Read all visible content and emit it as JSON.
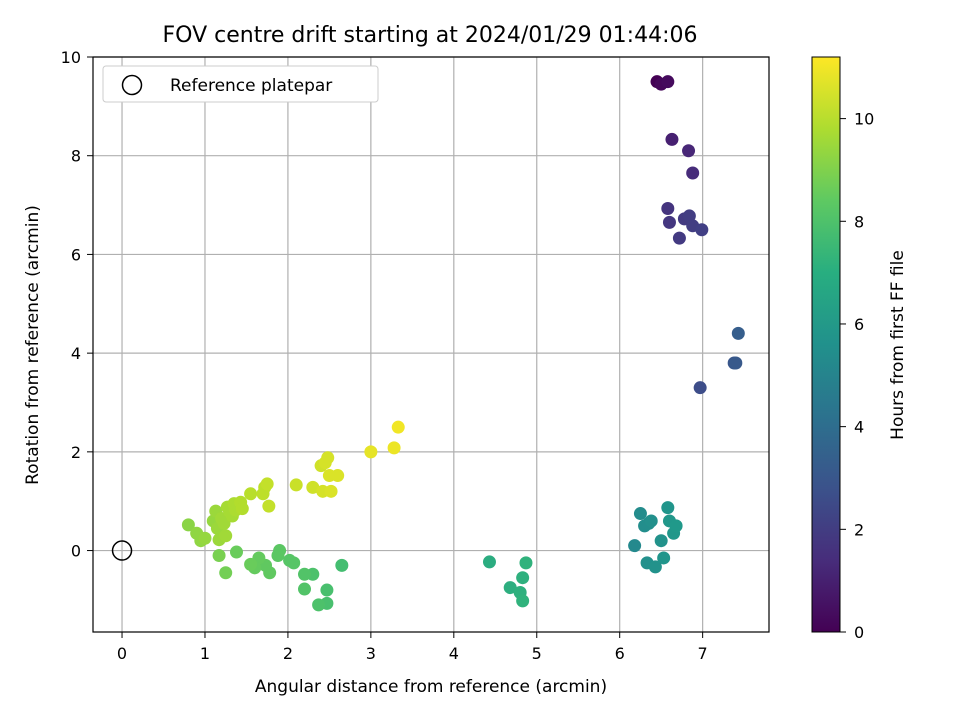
{
  "chart_data": {
    "type": "scatter",
    "title": "FOV centre drift starting at 2024/01/29 01:44:06",
    "xlabel": "Angular distance from reference (arcmin)",
    "ylabel": "Rotation from reference (arcmin)",
    "xlim": [
      -0.35,
      7.8
    ],
    "ylim": [
      -1.65,
      10.0
    ],
    "xticks": [
      0,
      1,
      2,
      3,
      4,
      5,
      6,
      7
    ],
    "yticks": [
      0,
      2,
      4,
      6,
      8,
      10
    ],
    "grid": true,
    "legend": {
      "position": "top-left",
      "entries": [
        "Reference platepar"
      ]
    },
    "reference_point": {
      "label": "Reference platepar",
      "x": 0.0,
      "y": 0.0
    },
    "colorbar": {
      "label": "Hours from first FF file",
      "colormap": "viridis",
      "range": [
        0,
        11.2
      ],
      "ticks": [
        0,
        2,
        4,
        6,
        8,
        10
      ]
    },
    "series": [
      {
        "points": [
          {
            "x": 6.45,
            "y": 9.5,
            "c": 0.0
          },
          {
            "x": 6.5,
            "y": 9.45,
            "c": 0.2
          },
          {
            "x": 6.58,
            "y": 9.5,
            "c": 0.3
          },
          {
            "x": 6.63,
            "y": 8.33,
            "c": 1.0
          },
          {
            "x": 6.83,
            "y": 8.1,
            "c": 1.2
          },
          {
            "x": 6.88,
            "y": 7.65,
            "c": 1.4
          },
          {
            "x": 6.58,
            "y": 6.93,
            "c": 1.7
          },
          {
            "x": 6.6,
            "y": 6.65,
            "c": 1.8
          },
          {
            "x": 6.72,
            "y": 6.33,
            "c": 1.9
          },
          {
            "x": 6.78,
            "y": 6.72,
            "c": 1.9
          },
          {
            "x": 6.84,
            "y": 6.78,
            "c": 2.0
          },
          {
            "x": 6.88,
            "y": 6.58,
            "c": 2.0
          },
          {
            "x": 6.99,
            "y": 6.5,
            "c": 2.1
          },
          {
            "x": 6.97,
            "y": 3.3,
            "c": 2.6
          },
          {
            "x": 7.38,
            "y": 3.8,
            "c": 3.0
          },
          {
            "x": 7.4,
            "y": 3.8,
            "c": 3.1
          },
          {
            "x": 7.43,
            "y": 4.4,
            "c": 3.3
          },
          {
            "x": 6.18,
            "y": 0.1,
            "c": 5.3
          },
          {
            "x": 6.25,
            "y": 0.75,
            "c": 5.4
          },
          {
            "x": 6.3,
            "y": 0.5,
            "c": 5.5
          },
          {
            "x": 6.35,
            "y": 0.55,
            "c": 5.5
          },
          {
            "x": 6.38,
            "y": 0.6,
            "c": 5.6
          },
          {
            "x": 6.33,
            "y": -0.25,
            "c": 5.6
          },
          {
            "x": 6.43,
            "y": -0.33,
            "c": 5.7
          },
          {
            "x": 6.5,
            "y": 0.2,
            "c": 5.7
          },
          {
            "x": 6.53,
            "y": -0.15,
            "c": 5.8
          },
          {
            "x": 6.58,
            "y": 0.87,
            "c": 5.8
          },
          {
            "x": 6.6,
            "y": 0.6,
            "c": 5.9
          },
          {
            "x": 6.65,
            "y": 0.35,
            "c": 5.9
          },
          {
            "x": 6.68,
            "y": 0.5,
            "c": 6.0
          },
          {
            "x": 4.43,
            "y": -0.23,
            "c": 6.9
          },
          {
            "x": 4.68,
            "y": -0.75,
            "c": 7.0
          },
          {
            "x": 4.8,
            "y": -0.85,
            "c": 7.1
          },
          {
            "x": 4.83,
            "y": -0.55,
            "c": 7.1
          },
          {
            "x": 4.83,
            "y": -1.02,
            "c": 7.2
          },
          {
            "x": 4.87,
            "y": -0.25,
            "c": 7.2
          },
          {
            "x": 2.65,
            "y": -0.3,
            "c": 7.8
          },
          {
            "x": 2.47,
            "y": -0.8,
            "c": 7.9
          },
          {
            "x": 2.47,
            "y": -1.07,
            "c": 7.9
          },
          {
            "x": 2.37,
            "y": -1.1,
            "c": 8.0
          },
          {
            "x": 2.3,
            "y": -0.48,
            "c": 8.0
          },
          {
            "x": 2.2,
            "y": -0.48,
            "c": 8.1
          },
          {
            "x": 2.2,
            "y": -0.78,
            "c": 8.1
          },
          {
            "x": 2.07,
            "y": -0.25,
            "c": 8.2
          },
          {
            "x": 2.02,
            "y": -0.2,
            "c": 8.2
          },
          {
            "x": 1.9,
            "y": 0.0,
            "c": 8.3
          },
          {
            "x": 1.88,
            "y": -0.1,
            "c": 8.3
          },
          {
            "x": 1.78,
            "y": -0.45,
            "c": 8.4
          },
          {
            "x": 1.73,
            "y": -0.3,
            "c": 8.4
          },
          {
            "x": 1.65,
            "y": -0.15,
            "c": 8.5
          },
          {
            "x": 1.6,
            "y": -0.35,
            "c": 8.5
          },
          {
            "x": 1.55,
            "y": -0.28,
            "c": 8.6
          },
          {
            "x": 1.38,
            "y": -0.03,
            "c": 8.6
          },
          {
            "x": 1.25,
            "y": -0.45,
            "c": 8.8
          },
          {
            "x": 1.17,
            "y": -0.1,
            "c": 8.9
          },
          {
            "x": 0.8,
            "y": 0.52,
            "c": 9.2
          },
          {
            "x": 0.9,
            "y": 0.35,
            "c": 9.3
          },
          {
            "x": 0.95,
            "y": 0.2,
            "c": 9.3
          },
          {
            "x": 1.0,
            "y": 0.25,
            "c": 9.4
          },
          {
            "x": 1.1,
            "y": 0.6,
            "c": 9.4
          },
          {
            "x": 1.13,
            "y": 0.8,
            "c": 9.5
          },
          {
            "x": 1.15,
            "y": 0.45,
            "c": 9.5
          },
          {
            "x": 1.17,
            "y": 0.22,
            "c": 9.5
          },
          {
            "x": 1.2,
            "y": 0.65,
            "c": 9.6
          },
          {
            "x": 1.23,
            "y": 0.55,
            "c": 9.6
          },
          {
            "x": 1.25,
            "y": 0.3,
            "c": 9.6
          },
          {
            "x": 1.27,
            "y": 0.88,
            "c": 9.7
          },
          {
            "x": 1.3,
            "y": 0.78,
            "c": 9.7
          },
          {
            "x": 1.33,
            "y": 0.7,
            "c": 9.7
          },
          {
            "x": 1.35,
            "y": 0.95,
            "c": 9.8
          },
          {
            "x": 1.37,
            "y": 0.82,
            "c": 9.8
          },
          {
            "x": 1.4,
            "y": 0.9,
            "c": 9.8
          },
          {
            "x": 1.43,
            "y": 0.98,
            "c": 9.9
          },
          {
            "x": 1.45,
            "y": 0.85,
            "c": 9.9
          },
          {
            "x": 1.55,
            "y": 1.15,
            "c": 10.0
          },
          {
            "x": 1.7,
            "y": 1.15,
            "c": 10.1
          },
          {
            "x": 1.72,
            "y": 1.28,
            "c": 10.1
          },
          {
            "x": 1.75,
            "y": 1.35,
            "c": 10.2
          },
          {
            "x": 1.77,
            "y": 0.9,
            "c": 10.2
          },
          {
            "x": 2.1,
            "y": 1.33,
            "c": 10.3
          },
          {
            "x": 2.3,
            "y": 1.28,
            "c": 10.4
          },
          {
            "x": 2.4,
            "y": 1.72,
            "c": 10.4
          },
          {
            "x": 2.42,
            "y": 1.2,
            "c": 10.5
          },
          {
            "x": 2.45,
            "y": 1.78,
            "c": 10.5
          },
          {
            "x": 2.48,
            "y": 1.88,
            "c": 10.5
          },
          {
            "x": 2.5,
            "y": 1.52,
            "c": 10.6
          },
          {
            "x": 2.52,
            "y": 1.2,
            "c": 10.6
          },
          {
            "x": 2.6,
            "y": 1.52,
            "c": 10.6
          },
          {
            "x": 3.0,
            "y": 2.0,
            "c": 10.8
          },
          {
            "x": 3.28,
            "y": 2.08,
            "c": 10.9
          },
          {
            "x": 3.33,
            "y": 2.5,
            "c": 11.0
          }
        ]
      }
    ]
  }
}
